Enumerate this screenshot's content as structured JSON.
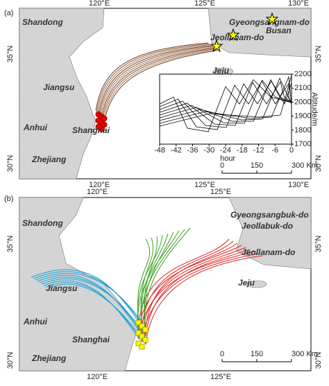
{
  "panel_a": {
    "label": "(a)",
    "lon_labels": [
      "120°E",
      "125°E",
      "130°E"
    ],
    "lat_labels": [
      "35°N",
      "30°N"
    ],
    "places": [
      "Shandong",
      "Jiangsu",
      "Anhui",
      "Zhejiang",
      "Shanghai",
      "Jeju",
      "Jeollanam-do",
      "Busan",
      "Gyeongsangnam-do"
    ],
    "inset": {
      "xlabel": "hour",
      "ylabel": "Altitude/m",
      "xlim": [
        -48,
        0
      ],
      "ylim": [
        1700,
        2200
      ],
      "xticks": [
        -48,
        -42,
        -36,
        -30,
        -24,
        -18,
        -12,
        -6,
        0
      ],
      "yticks": [
        1700,
        1800,
        1900,
        2000,
        2100,
        2200
      ]
    },
    "scale": [
      "0",
      "150",
      "300 Km"
    ]
  },
  "panel_b": {
    "label": "(b)",
    "lon_labels": [
      "120°E",
      "125°E"
    ],
    "lat_labels": [
      "35°N",
      "30°N"
    ],
    "places": [
      "Shandong",
      "Jiangsu",
      "Anhui",
      "Zhejiang",
      "Shanghai",
      "Gyeongsangbuk-do",
      "Jeollabuk-do",
      "Jeollanam-do",
      "Jeju"
    ],
    "scale": [
      "0",
      "150",
      "300 Km"
    ]
  }
}
